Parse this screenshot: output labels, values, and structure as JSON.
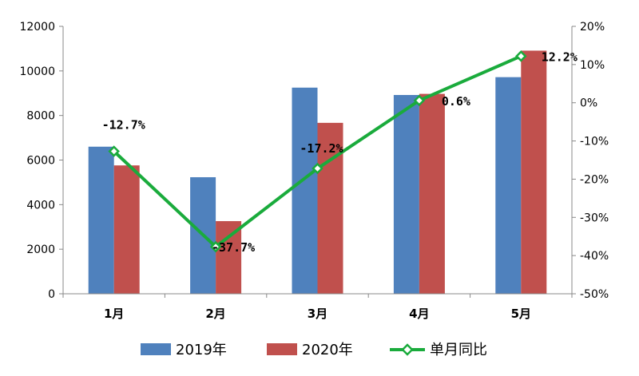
{
  "chart_data": {
    "type": "bar",
    "categories": [
      "1月",
      "2月",
      "3月",
      "4月",
      "5月"
    ],
    "series": [
      {
        "name": "2019年",
        "type": "bar",
        "axis": "left",
        "color": "#4f81bd",
        "values": [
          6600,
          5230,
          9250,
          8920,
          9720
        ]
      },
      {
        "name": "2020年",
        "type": "bar",
        "axis": "left",
        "color": "#c0504d",
        "values": [
          5760,
          3260,
          7670,
          8970,
          10910
        ]
      },
      {
        "name": "单月同比",
        "type": "line",
        "axis": "right",
        "color": "#1aab3c",
        "values": [
          -12.7,
          -37.7,
          -17.2,
          0.6,
          12.2
        ],
        "labels": [
          "-12.7%",
          "-37.7%",
          "-17.2%",
          "0.6%",
          "12.2%"
        ]
      }
    ],
    "y_left": {
      "min": 0,
      "max": 12000,
      "ticks": [
        "0",
        "2000",
        "4000",
        "6000",
        "8000",
        "10000",
        "12000"
      ]
    },
    "y_right": {
      "min": -50,
      "max": 20,
      "ticks": [
        "-50%",
        "-40%",
        "-30%",
        "-20%",
        "-10%",
        "0%",
        "10%",
        "20%"
      ]
    },
    "legend_position": "bottom",
    "grid": false
  }
}
